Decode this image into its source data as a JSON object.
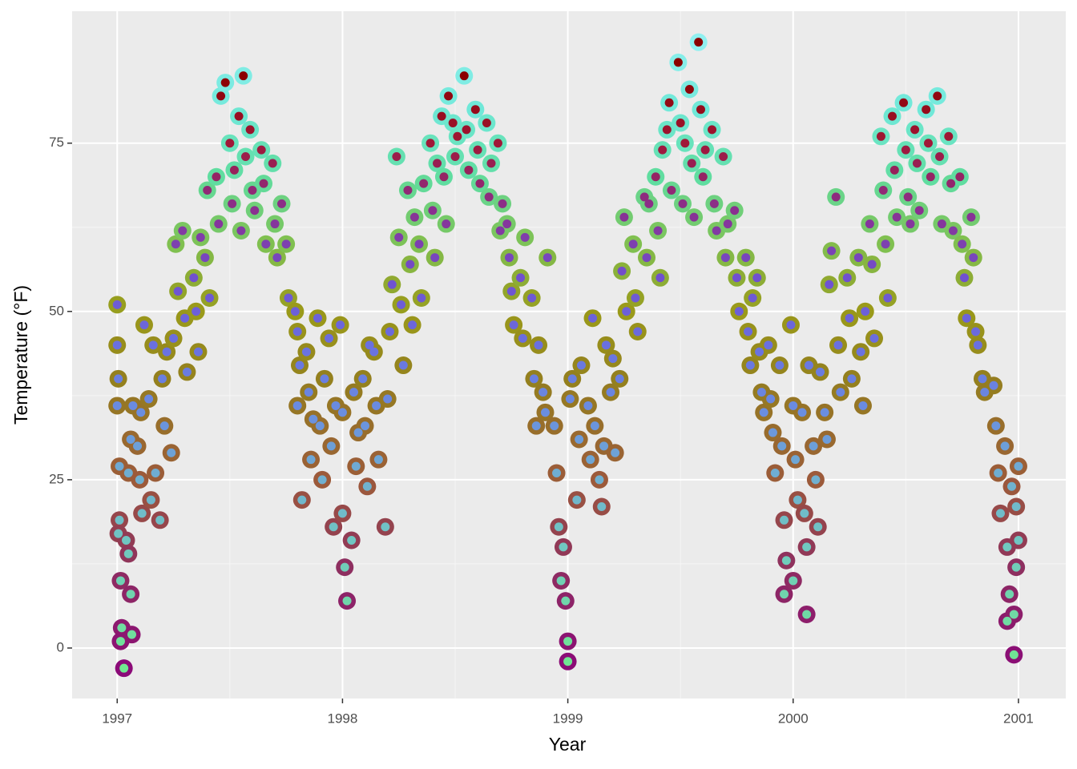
{
  "chart_data": {
    "type": "scatter",
    "x_label": "Year",
    "y_label": "Temperature (°F)",
    "xlim": [
      1996.8,
      2001.21
    ],
    "ylim": [
      -7.5,
      94.6
    ],
    "xticks": [
      1997,
      1998,
      1999,
      2000,
      2001
    ],
    "yticks": [
      0,
      25,
      50,
      75
    ],
    "grid": true,
    "outer_color_scale": [
      {
        "value": -3,
        "color": "#8b0a78"
      },
      {
        "value": 12,
        "color": "#8e2f60"
      },
      {
        "value": 25,
        "color": "#9c5a3a"
      },
      {
        "value": 40,
        "color": "#94801e"
      },
      {
        "value": 50,
        "color": "#9a9a1a"
      },
      {
        "value": 60,
        "color": "#80c050"
      },
      {
        "value": 70,
        "color": "#60dda0"
      },
      {
        "value": 80,
        "color": "#70e8d8"
      },
      {
        "value": 90,
        "color": "#90f0f0"
      }
    ],
    "inner_color_scale": [
      {
        "value": -3,
        "color": "#70e890"
      },
      {
        "value": 15,
        "color": "#70c8c0"
      },
      {
        "value": 25,
        "color": "#70b0d0"
      },
      {
        "value": 35,
        "color": "#6a8ee0"
      },
      {
        "value": 45,
        "color": "#6a70e0"
      },
      {
        "value": 55,
        "color": "#7050d0"
      },
      {
        "value": 65,
        "color": "#8a3090"
      },
      {
        "value": 75,
        "color": "#a01838"
      },
      {
        "value": 85,
        "color": "#8b0000"
      }
    ],
    "x": [
      1997.0,
      1997.0,
      1997.005,
      1997.0,
      1997.01,
      1997.01,
      1997.005,
      1997.015,
      1997.02,
      1997.015,
      1997.03,
      1997.04,
      1997.05,
      1997.06,
      1997.065,
      1997.05,
      1997.06,
      1997.07,
      1997.09,
      1997.1,
      1997.11,
      1997.105,
      1997.12,
      1997.14,
      1997.15,
      1997.16,
      1997.17,
      1997.19,
      1997.2,
      1997.21,
      1997.22,
      1997.24,
      1997.25,
      1997.26,
      1997.27,
      1997.29,
      1997.3,
      1997.31,
      1997.34,
      1997.35,
      1997.36,
      1997.37,
      1997.39,
      1997.4,
      1997.41,
      1997.44,
      1997.45,
      1997.46,
      1997.48,
      1997.5,
      1997.51,
      1997.52,
      1997.54,
      1997.56,
      1997.55,
      1997.57,
      1997.59,
      1997.6,
      1997.61,
      1997.64,
      1997.65,
      1997.66,
      1997.69,
      1997.7,
      1997.71,
      1997.73,
      1997.75,
      1997.76,
      1997.79,
      1997.8,
      1997.81,
      1997.8,
      1997.82,
      1997.84,
      1997.85,
      1997.86,
      1997.87,
      1997.89,
      1997.9,
      1997.91,
      1997.92,
      1997.94,
      1997.95,
      1997.96,
      1997.97,
      1997.99,
      1998.0,
      1998.01,
      1998.02,
      1998.0,
      1998.04,
      1998.05,
      1998.06,
      1998.07,
      1998.09,
      1998.1,
      1998.11,
      1998.12,
      1998.14,
      1998.15,
      1998.16,
      1998.19,
      1998.2,
      1998.22,
      1998.21,
      1998.24,
      1998.25,
      1998.26,
      1998.27,
      1998.29,
      1998.3,
      1998.31,
      1998.32,
      1998.34,
      1998.35,
      1998.36,
      1998.39,
      1998.4,
      1998.41,
      1998.42,
      1998.44,
      1998.45,
      1998.46,
      1998.47,
      1998.49,
      1998.5,
      1998.51,
      1998.54,
      1998.55,
      1998.56,
      1998.59,
      1998.6,
      1998.61,
      1998.64,
      1998.65,
      1998.66,
      1998.69,
      1998.7,
      1998.71,
      1998.74,
      1998.75,
      1998.76,
      1998.73,
      1998.79,
      1998.8,
      1998.81,
      1998.84,
      1998.85,
      1998.86,
      1998.87,
      1998.89,
      1998.9,
      1998.91,
      1998.94,
      1998.95,
      1998.96,
      1998.97,
      1998.99,
      1999.0,
      1999.0,
      1998.98,
      1999.01,
      1999.02,
      1999.04,
      1999.05,
      1999.06,
      1999.09,
      1999.1,
      1999.11,
      1999.12,
      1999.14,
      1999.15,
      1999.16,
      1999.17,
      1999.19,
      1999.2,
      1999.21,
      1999.24,
      1999.25,
      1999.26,
      1999.23,
      1999.29,
      1999.3,
      1999.31,
      1999.34,
      1999.35,
      1999.36,
      1999.39,
      1999.4,
      1999.41,
      1999.42,
      1999.44,
      1999.45,
      1999.46,
      1999.49,
      1999.5,
      1999.51,
      1999.52,
      1999.54,
      1999.55,
      1999.56,
      1999.58,
      1999.59,
      1999.6,
      1999.61,
      1999.64,
      1999.65,
      1999.66,
      1999.69,
      1999.7,
      1999.71,
      1999.74,
      1999.75,
      1999.76,
      1999.79,
      1999.8,
      1999.81,
      1999.82,
      1999.84,
      1999.85,
      1999.86,
      1999.87,
      1999.89,
      1999.9,
      1999.91,
      1999.92,
      1999.94,
      1999.95,
      1999.96,
      1999.97,
      1999.96,
      1999.99,
      2000.0,
      2000.01,
      2000.02,
      2000.0,
      2000.04,
      2000.05,
      2000.06,
      2000.06,
      2000.07,
      2000.09,
      2000.1,
      2000.11,
      2000.12,
      2000.14,
      2000.15,
      2000.16,
      2000.17,
      2000.19,
      2000.2,
      2000.21,
      2000.24,
      2000.25,
      2000.26,
      2000.29,
      2000.3,
      2000.31,
      2000.32,
      2000.34,
      2000.35,
      2000.36,
      2000.39,
      2000.4,
      2000.41,
      2000.42,
      2000.44,
      2000.45,
      2000.46,
      2000.49,
      2000.5,
      2000.51,
      2000.52,
      2000.54,
      2000.55,
      2000.56,
      2000.59,
      2000.6,
      2000.61,
      2000.64,
      2000.65,
      2000.66,
      2000.69,
      2000.7,
      2000.71,
      2000.74,
      2000.75,
      2000.76,
      2000.77,
      2000.79,
      2000.8,
      2000.81,
      2000.82,
      2000.84,
      2000.85,
      2000.89,
      2000.9,
      2000.91,
      2000.92,
      2000.94,
      2000.95,
      2000.96,
      2000.95,
      2000.97,
      2000.98,
      2000.98,
      2000.99,
      2000.99,
      2001.0,
      2001.0
    ],
    "values": [
      51,
      45,
      40,
      36,
      27,
      19,
      17,
      10,
      3,
      1,
      -3,
      16,
      14,
      8,
      2,
      26,
      31,
      36,
      30,
      25,
      20,
      35,
      48,
      37,
      22,
      45,
      26,
      19,
      40,
      33,
      44,
      29,
      46,
      60,
      53,
      62,
      49,
      41,
      55,
      50,
      44,
      61,
      58,
      68,
      52,
      70,
      63,
      82,
      84,
      75,
      66,
      71,
      79,
      85,
      62,
      73,
      77,
      68,
      65,
      74,
      69,
      60,
      72,
      63,
      58,
      66,
      60,
      52,
      50,
      47,
      42,
      36,
      22,
      44,
      38,
      28,
      34,
      49,
      33,
      25,
      40,
      46,
      30,
      18,
      36,
      48,
      20,
      12,
      7,
      35,
      16,
      38,
      27,
      32,
      40,
      33,
      24,
      45,
      44,
      36,
      28,
      18,
      37,
      54,
      47,
      73,
      61,
      51,
      42,
      68,
      57,
      48,
      64,
      60,
      52,
      69,
      75,
      65,
      58,
      72,
      79,
      70,
      63,
      82,
      78,
      73,
      76,
      85,
      77,
      71,
      80,
      74,
      69,
      78,
      67,
      72,
      75,
      62,
      66,
      58,
      53,
      48,
      63,
      55,
      46,
      61,
      52,
      40,
      33,
      45,
      38,
      35,
      58,
      33,
      26,
      18,
      10,
      7,
      1,
      -2,
      15,
      37,
      40,
      22,
      31,
      42,
      36,
      28,
      49,
      33,
      25,
      21,
      30,
      45,
      38,
      43,
      29,
      56,
      64,
      50,
      40,
      60,
      52,
      47,
      67,
      58,
      66,
      70,
      62,
      55,
      74,
      77,
      81,
      68,
      87,
      78,
      66,
      75,
      83,
      72,
      64,
      90,
      80,
      70,
      74,
      77,
      66,
      62,
      73,
      58,
      63,
      65,
      55,
      50,
      58,
      47,
      42,
      52,
      55,
      44,
      38,
      35,
      45,
      37,
      32,
      26,
      42,
      30,
      19,
      13,
      8,
      48,
      36,
      28,
      22,
      10,
      35,
      20,
      15,
      5,
      42,
      30,
      25,
      18,
      41,
      35,
      31,
      54,
      59,
      67,
      45,
      38,
      55,
      49,
      40,
      58,
      44,
      36,
      50,
      63,
      57,
      46,
      76,
      68,
      60,
      52,
      79,
      71,
      64,
      81,
      74,
      67,
      63,
      77,
      72,
      65,
      80,
      75,
      70,
      82,
      73,
      63,
      76,
      69,
      62,
      70,
      60,
      55,
      49,
      64,
      58,
      47,
      45,
      40,
      38,
      39,
      33,
      26,
      20,
      30,
      15,
      8,
      4,
      24,
      -1,
      5,
      12,
      21,
      27,
      16
    ]
  }
}
